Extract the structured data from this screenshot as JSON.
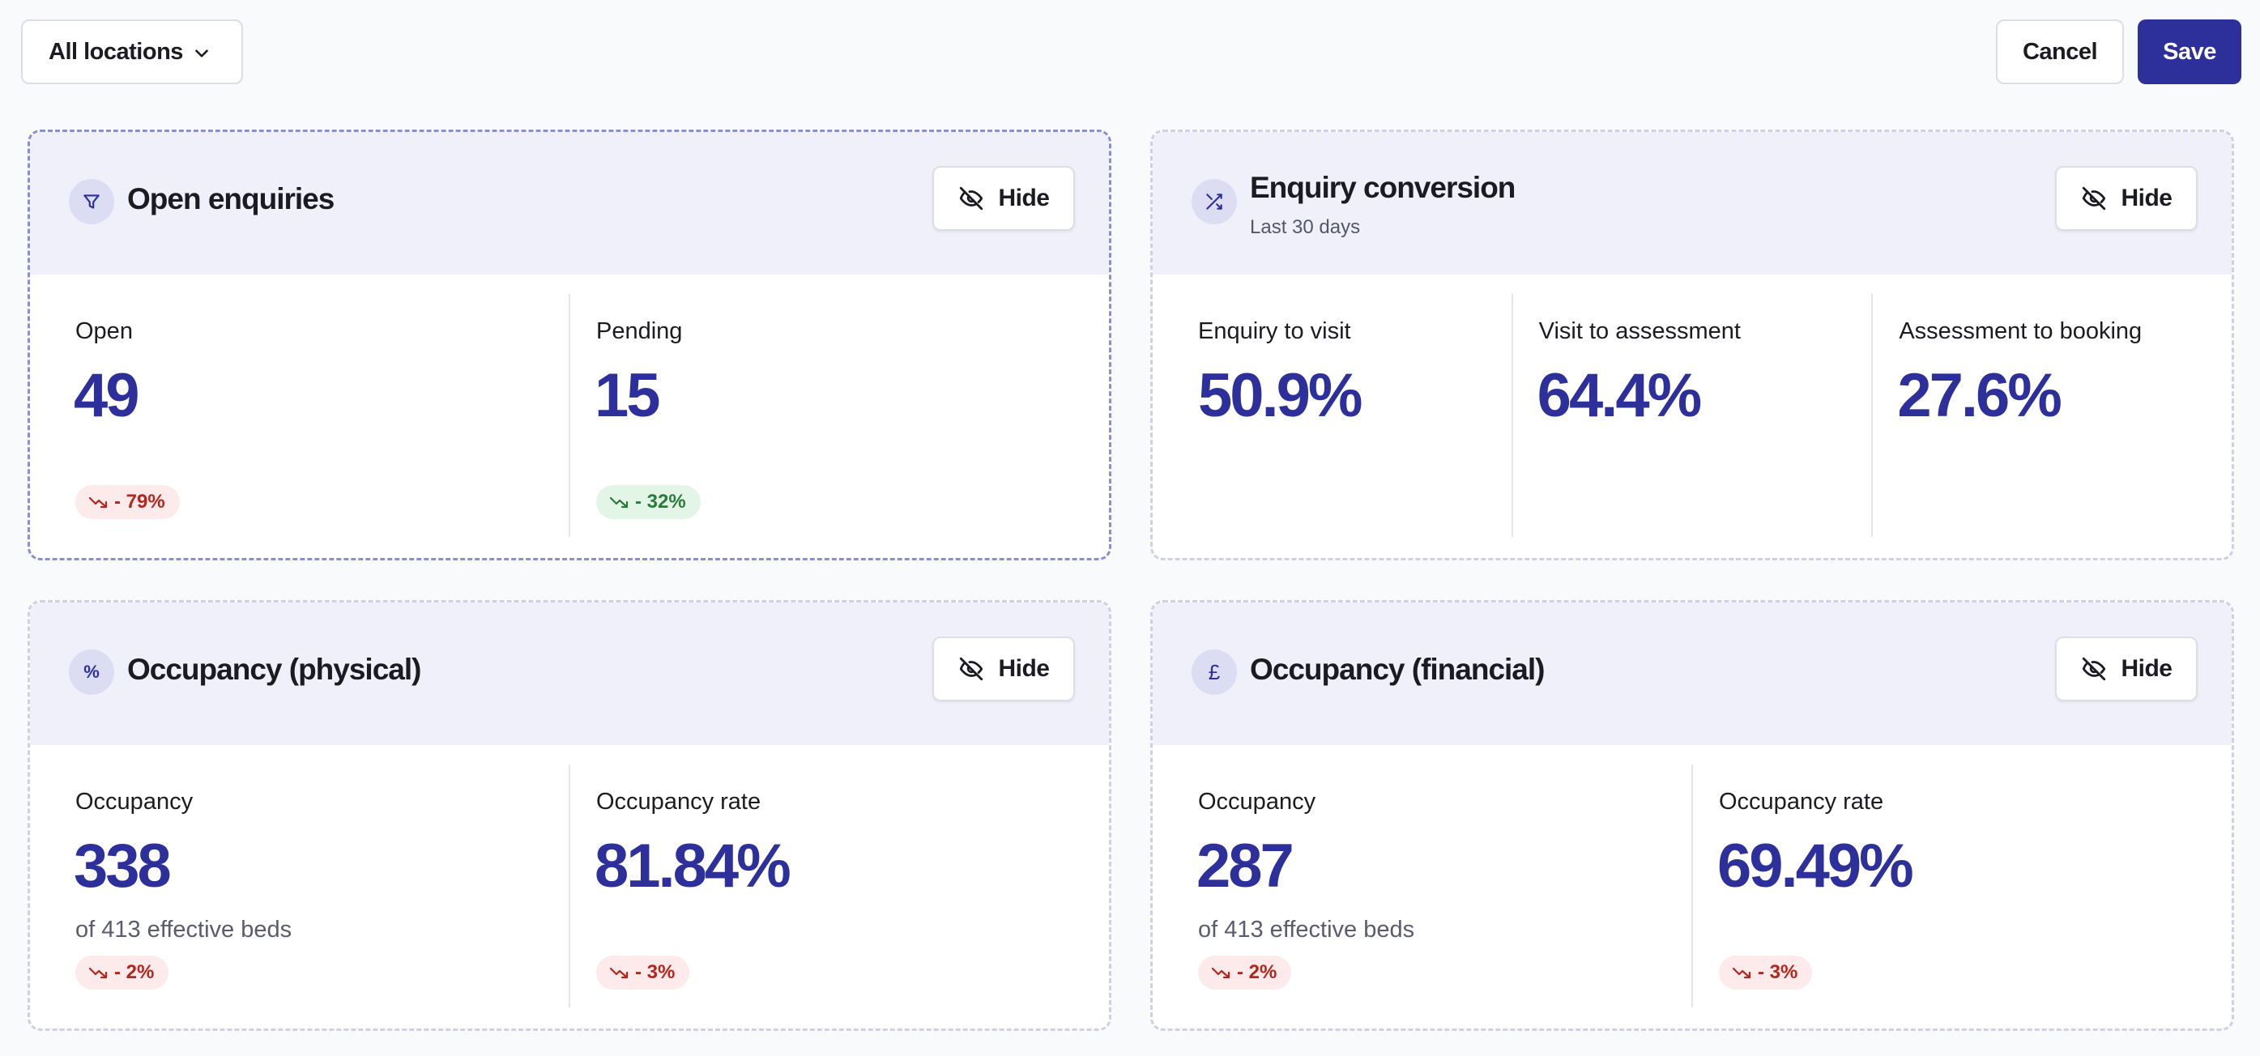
{
  "topbar": {
    "location_select": "All locations",
    "cancel_label": "Cancel",
    "save_label": "Save"
  },
  "colors": {
    "accent": "#2d2f9a",
    "header_bg": "#f0f0fa",
    "negative": "#b3261e",
    "positive": "#2a7b3a"
  },
  "cards": [
    {
      "title": "Open enquiries",
      "icon": "funnel-icon",
      "hide_label": "Hide",
      "metrics": [
        {
          "label": "Open",
          "value": "49",
          "badge": "- 79%",
          "trend": "negative"
        },
        {
          "label": "Pending",
          "value": "15",
          "badge": "- 32%",
          "trend": "positive"
        }
      ]
    },
    {
      "title": "Enquiry conversion",
      "subtitle": "Last 30 days",
      "icon": "shuffle-icon",
      "hide_label": "Hide",
      "metrics": [
        {
          "label": "Enquiry to visit",
          "value": "50.9%"
        },
        {
          "label": "Visit to assessment",
          "value": "64.4%"
        },
        {
          "label": "Assessment to booking",
          "value": "27.6%"
        }
      ]
    },
    {
      "title": "Occupancy (physical)",
      "icon": "percent-icon",
      "icon_glyph": "%",
      "hide_label": "Hide",
      "metrics": [
        {
          "label": "Occupancy",
          "value": "338",
          "note": "of 413 effective beds",
          "badge": "- 2%",
          "trend": "negative"
        },
        {
          "label": "Occupancy rate",
          "value": "81.84%",
          "badge": "- 3%",
          "trend": "negative"
        }
      ]
    },
    {
      "title": "Occupancy (financial)",
      "icon": "pound-icon",
      "icon_glyph": "£",
      "hide_label": "Hide",
      "metrics": [
        {
          "label": "Occupancy",
          "value": "287",
          "note": "of 413 effective beds",
          "badge": "- 2%",
          "trend": "negative"
        },
        {
          "label": "Occupancy rate",
          "value": "69.49%",
          "badge": "- 3%",
          "trend": "negative"
        }
      ]
    }
  ]
}
